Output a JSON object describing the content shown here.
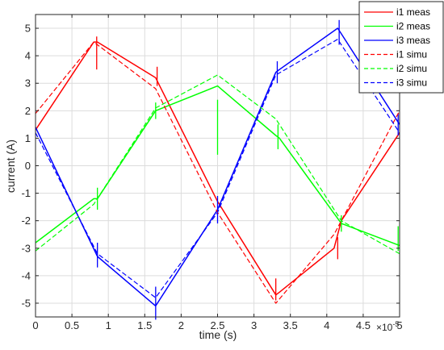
{
  "chart_data": {
    "type": "line",
    "title": "",
    "xlabel": "time (s)",
    "ylabel": "current (A)",
    "x_exponent_base": "×10",
    "x_exponent_power": "-5",
    "xlim": [
      0,
      5
    ],
    "ylim": [
      -5.5,
      5.5
    ],
    "xticks": [
      0,
      0.5,
      1,
      1.5,
      2,
      2.5,
      3,
      3.5,
      4,
      4.5,
      5
    ],
    "xtick_labels": [
      "0",
      "0.5",
      "1",
      "1.5",
      "2",
      "2.5",
      "3",
      "3.5",
      "4",
      "4.5",
      "5"
    ],
    "yticks": [
      -5,
      -4,
      -3,
      -2,
      -1,
      0,
      1,
      2,
      3,
      4,
      5
    ],
    "ytick_labels": [
      "-5",
      "-4",
      "-3",
      "-2",
      "-1",
      "0",
      "1",
      "2",
      "3",
      "4",
      "5"
    ],
    "grid": true,
    "legend_position": "top-right",
    "series": [
      {
        "name": "i1 meas",
        "color": "#ff0000",
        "style": "solid",
        "x": [
          0,
          0.8,
          0.85,
          1.65,
          2.5,
          3.3,
          3.35,
          4.1,
          4.2,
          5
        ],
        "y": [
          1.3,
          4.5,
          4.5,
          3.2,
          -1.3,
          -4.7,
          -4.6,
          -3.0,
          -2.0,
          1.2
        ],
        "spikes": [
          {
            "x": 0.84,
            "y0": 4.7,
            "y1": 3.5
          },
          {
            "x": 1.67,
            "y0": 3.6,
            "y1": 2.9
          },
          {
            "x": 3.3,
            "y0": -4.1,
            "y1": -4.9
          },
          {
            "x": 4.15,
            "y0": -2.6,
            "y1": -3.4
          }
        ]
      },
      {
        "name": "i2 meas",
        "color": "#00ff00",
        "style": "solid",
        "x": [
          0,
          0.8,
          0.85,
          1.65,
          2.5,
          3.3,
          3.35,
          4.2,
          5
        ],
        "y": [
          -2.8,
          -1.2,
          -1.2,
          2.0,
          2.9,
          1.1,
          1.0,
          -2.1,
          -2.9
        ],
        "spikes": [
          {
            "x": 0.85,
            "y0": -0.8,
            "y1": -1.6
          },
          {
            "x": 1.65,
            "y0": 2.3,
            "y1": 1.7
          },
          {
            "x": 2.5,
            "y0": 2.4,
            "y1": 0.4
          },
          {
            "x": 3.33,
            "y0": 1.5,
            "y1": 0.6
          },
          {
            "x": 4.2,
            "y0": -1.8,
            "y1": -2.4
          },
          {
            "x": 4.98,
            "y0": -2.2,
            "y1": -3.1
          }
        ]
      },
      {
        "name": "i3 meas",
        "color": "#0000ff",
        "style": "solid",
        "x": [
          0,
          0.85,
          1.65,
          2.5,
          3.3,
          3.35,
          4.15,
          4.2,
          5
        ],
        "y": [
          1.4,
          -3.3,
          -5.1,
          -1.6,
          3.4,
          3.5,
          5.0,
          4.8,
          1.5
        ],
        "spikes": [
          {
            "x": 0.85,
            "y0": -2.8,
            "y1": -3.7
          },
          {
            "x": 1.65,
            "y0": -4.4,
            "y1": -5.6
          },
          {
            "x": 2.5,
            "y0": -1.1,
            "y1": -2.1
          },
          {
            "x": 3.32,
            "y0": 3.0,
            "y1": 3.8
          },
          {
            "x": 4.17,
            "y0": 5.3,
            "y1": 4.4
          },
          {
            "x": 4.98,
            "y0": 1.9,
            "y1": 1.1
          }
        ]
      },
      {
        "name": "i1 simu",
        "color": "#ff0000",
        "style": "dashed",
        "x": [
          0,
          0.8,
          1.65,
          2.5,
          3.3,
          4.1,
          5
        ],
        "y": [
          1.9,
          4.5,
          2.8,
          -1.7,
          -5.0,
          -2.5,
          2.0
        ]
      },
      {
        "name": "i2 simu",
        "color": "#00ff00",
        "style": "dashed",
        "x": [
          0,
          0.8,
          1.65,
          2.5,
          3.3,
          4.2,
          5
        ],
        "y": [
          -3.1,
          -1.4,
          2.1,
          3.3,
          1.7,
          -2.0,
          -3.2
        ]
      },
      {
        "name": "i3 simu",
        "color": "#0000ff",
        "style": "dashed",
        "x": [
          0,
          0.85,
          1.65,
          2.5,
          3.3,
          4.15,
          5
        ],
        "y": [
          1.2,
          -3.2,
          -4.8,
          -1.7,
          3.3,
          4.6,
          1.2
        ]
      }
    ]
  }
}
